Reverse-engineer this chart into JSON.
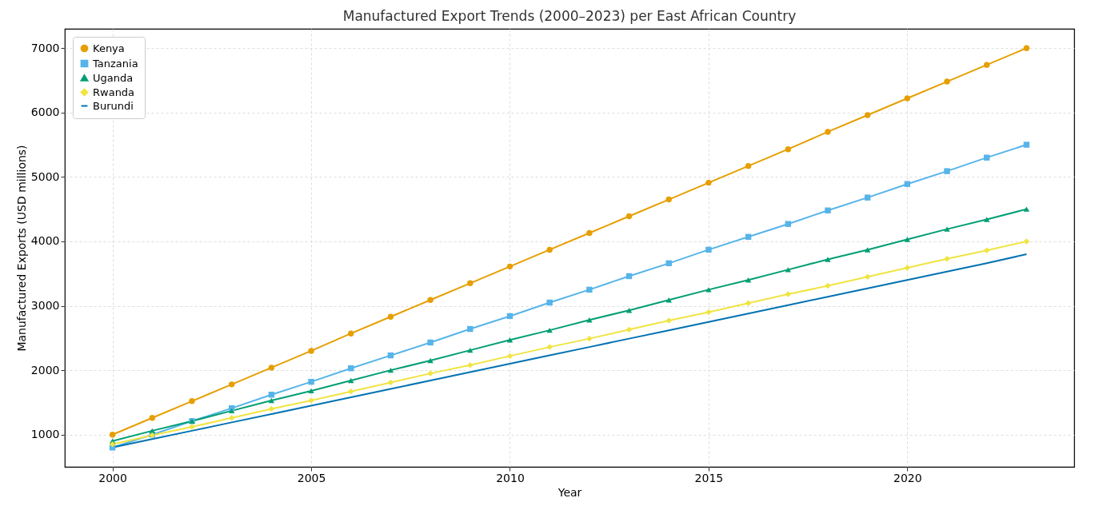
{
  "chart_data": {
    "type": "line",
    "title": "Manufactured Export Trends (2000–2023) per East African Country",
    "xlabel": "Year",
    "ylabel": "Manufactured Exports (USD millions)",
    "x": [
      2000,
      2001,
      2002,
      2003,
      2004,
      2005,
      2006,
      2007,
      2008,
      2009,
      2010,
      2011,
      2012,
      2013,
      2014,
      2015,
      2016,
      2017,
      2018,
      2019,
      2020,
      2021,
      2022,
      2023
    ],
    "series": [
      {
        "name": "Kenya",
        "color": "#e69f00",
        "marker": "circle",
        "values": [
          1000,
          1260,
          1520,
          1780,
          2040,
          2300,
          2570,
          2830,
          3090,
          3350,
          3610,
          3870,
          4130,
          4390,
          4650,
          4910,
          5170,
          5430,
          5700,
          5960,
          6220,
          6480,
          6740,
          7000
        ]
      },
      {
        "name": "Tanzania",
        "color": "#56b4e9",
        "marker": "square",
        "values": [
          800,
          1000,
          1210,
          1410,
          1620,
          1820,
          2030,
          2230,
          2430,
          2640,
          2840,
          3050,
          3250,
          3460,
          3660,
          3870,
          4070,
          4270,
          4480,
          4680,
          4890,
          5090,
          5300,
          5500
        ]
      },
      {
        "name": "Uganda",
        "color": "#009e73",
        "marker": "triangle",
        "values": [
          900,
          1060,
          1210,
          1370,
          1530,
          1680,
          1840,
          2000,
          2150,
          2310,
          2470,
          2620,
          2780,
          2930,
          3090,
          3250,
          3400,
          3560,
          3720,
          3870,
          4030,
          4190,
          4340,
          4500
        ]
      },
      {
        "name": "Rwanda",
        "color": "#f0e442",
        "marker": "diamond",
        "values": [
          850,
          990,
          1120,
          1260,
          1400,
          1530,
          1670,
          1810,
          1950,
          2080,
          2220,
          2360,
          2490,
          2630,
          2770,
          2900,
          3040,
          3180,
          3310,
          3450,
          3590,
          3730,
          3860,
          4000
        ]
      },
      {
        "name": "Burundi",
        "color": "#0072b2",
        "marker": "none",
        "values": [
          800,
          930,
          1060,
          1190,
          1320,
          1450,
          1580,
          1710,
          1840,
          1970,
          2100,
          2230,
          2360,
          2490,
          2620,
          2750,
          2880,
          3010,
          3140,
          3270,
          3400,
          3530,
          3660,
          3800
        ]
      }
    ],
    "xlim": [
      1998.8,
      2024.2
    ],
    "xticks": [
      2000,
      2005,
      2010,
      2015,
      2020
    ],
    "ylim": [
      500,
      7300
    ],
    "yticks": [
      1000,
      2000,
      3000,
      4000,
      5000,
      6000,
      7000
    ],
    "grid": true,
    "legend": "top left",
    "line_style": "solid"
  }
}
